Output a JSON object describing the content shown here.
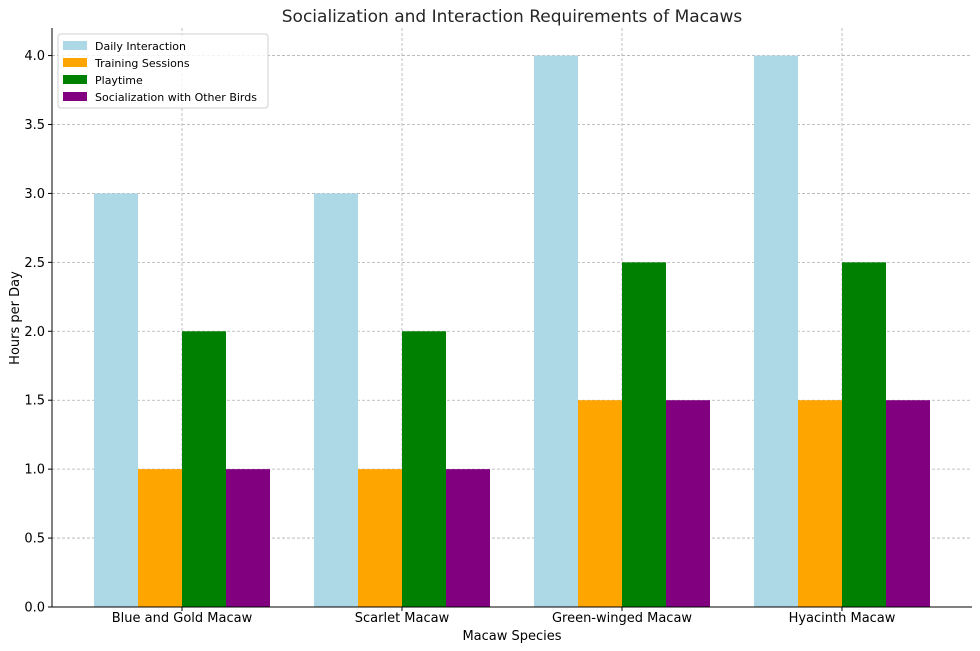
{
  "chart_data": {
    "type": "bar",
    "title": "Socialization and Interaction Requirements of Macaws",
    "xlabel": "Macaw Species",
    "ylabel": "Hours per Day",
    "categories": [
      "Blue and Gold Macaw",
      "Scarlet Macaw",
      "Green-winged Macaw",
      "Hyacinth Macaw"
    ],
    "series": [
      {
        "name": "Daily Interaction",
        "values": [
          3.0,
          3.0,
          4.0,
          4.0
        ],
        "color": "#add8e6"
      },
      {
        "name": "Training Sessions",
        "values": [
          1.0,
          1.0,
          1.5,
          1.5
        ],
        "color": "#ffa500"
      },
      {
        "name": "Playtime",
        "values": [
          2.0,
          2.0,
          2.5,
          2.5
        ],
        "color": "#008000"
      },
      {
        "name": "Socialization with Other Birds",
        "values": [
          1.0,
          1.0,
          1.5,
          1.5
        ],
        "color": "#800080"
      }
    ],
    "ylim": [
      0,
      4.2
    ],
    "yticks": [
      "0.0",
      "0.5",
      "1.0",
      "1.5",
      "2.0",
      "2.5",
      "3.0",
      "3.5",
      "4.0"
    ],
    "grid": true,
    "legend": "top-left"
  }
}
